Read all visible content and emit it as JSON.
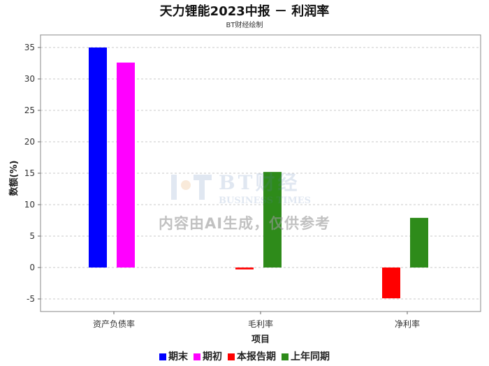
{
  "chart_data": {
    "type": "bar",
    "title": "天力锂能2023中报 － 利润率",
    "subtitle": "BT财经绘制",
    "xlabel": "项目",
    "ylabel": "数额(%)",
    "categories": [
      "资产负债率",
      "毛利率",
      "净利率"
    ],
    "series": [
      {
        "name": "期末",
        "color": "#0000ff",
        "values": [
          35.0,
          null,
          null
        ]
      },
      {
        "name": "期初",
        "color": "#ff00ff",
        "values": [
          32.6,
          null,
          null
        ]
      },
      {
        "name": "本报告期",
        "color": "#ff0000",
        "values": [
          null,
          -0.3,
          -4.9
        ]
      },
      {
        "name": "上年同期",
        "color": "#2e8b1a",
        "values": [
          null,
          15.2,
          7.9
        ]
      }
    ],
    "ylim": [
      -7,
      37
    ],
    "yticks": [
      -5,
      0,
      5,
      10,
      15,
      20,
      25,
      30,
      35
    ],
    "grid": true,
    "legend_position": "bottom"
  },
  "watermark": {
    "brand": "BT财经",
    "brand_en": "BUSINESS TIMES",
    "notice": "内容由AI生成，仅供参考"
  }
}
